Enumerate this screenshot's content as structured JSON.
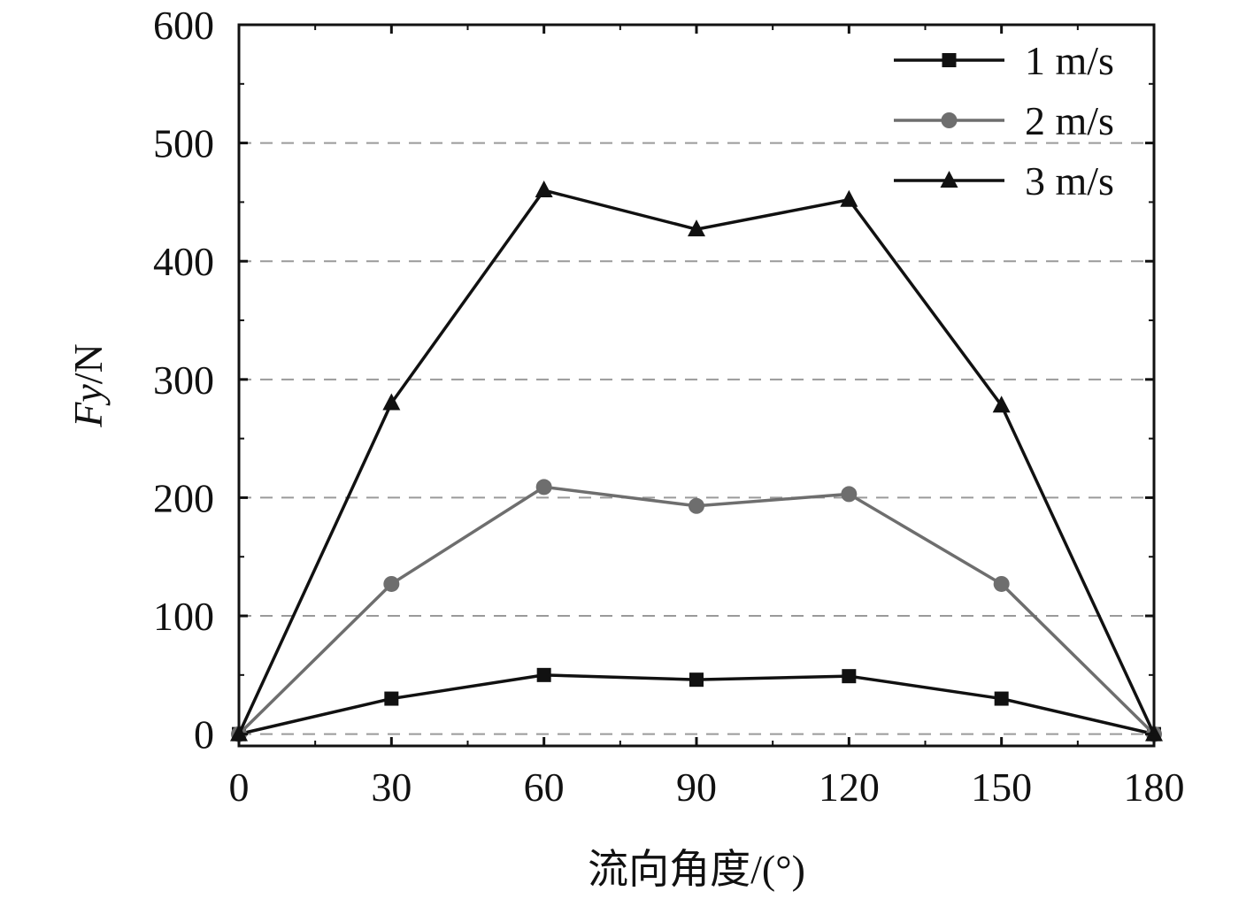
{
  "chart_data": {
    "type": "line",
    "xlabel": "流向角度/(°)",
    "ylabel_italic": "Fy",
    "ylabel_unit": "/N",
    "x": [
      0,
      30,
      60,
      90,
      120,
      150,
      180
    ],
    "xticks": [
      0,
      30,
      60,
      90,
      120,
      150,
      180
    ],
    "yticks": [
      0,
      100,
      200,
      300,
      400,
      500,
      600
    ],
    "xlim": [
      0,
      180
    ],
    "ylim": [
      -10,
      600
    ],
    "grid": "horizontal dashed",
    "legend_position": "top-right",
    "series": [
      {
        "name": "1 m/s",
        "marker": "square",
        "color": "#111111",
        "values": [
          0,
          30,
          50,
          46,
          49,
          30,
          0
        ]
      },
      {
        "name": "2 m/s",
        "marker": "circle",
        "color": "#6e6e6e",
        "values": [
          0,
          127,
          209,
          193,
          203,
          127,
          0
        ]
      },
      {
        "name": "3 m/s",
        "marker": "triangle",
        "color": "#111111",
        "values": [
          0,
          280,
          460,
          427,
          452,
          278,
          0
        ]
      }
    ]
  }
}
